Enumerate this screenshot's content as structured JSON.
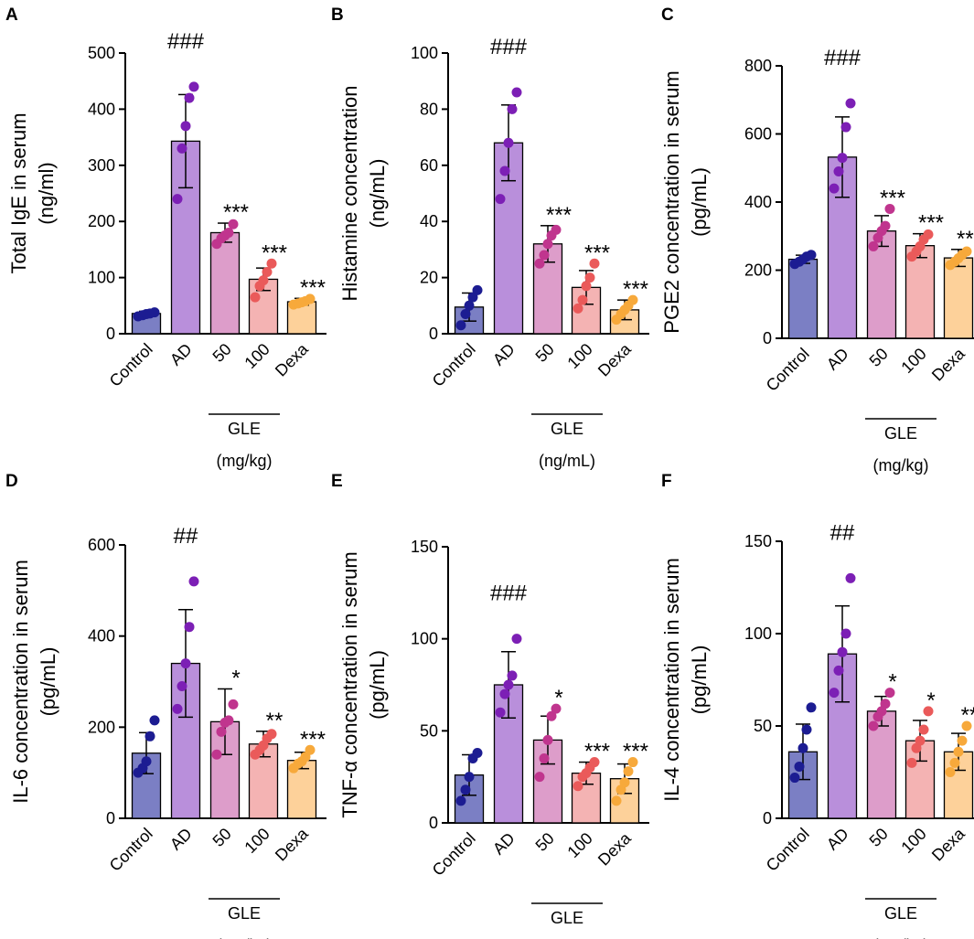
{
  "colors": {
    "bar_fill": [
      "#7b7fc4",
      "#b98fdb",
      "#dd9dca",
      "#f4b3b3",
      "#fdd19a"
    ],
    "dot_fill": [
      "#1c1c92",
      "#7c1fb5",
      "#c0358e",
      "#ea5a5a",
      "#f7a93b"
    ]
  },
  "chart_data": [
    {
      "type": "bar",
      "panel": "A",
      "ylabel_lines": [
        "Total IgE in serum",
        "(ng/ml)"
      ],
      "ylim": [
        0,
        500
      ],
      "yticks": [
        "0",
        "100",
        "200",
        "300",
        "400",
        "500"
      ],
      "categories": [
        "Control",
        "AD",
        "50",
        "100",
        "Dexa"
      ],
      "group_label": "GLE",
      "unit_label": "(mg/kg)",
      "means": [
        36,
        343,
        180,
        97,
        57
      ],
      "sd": [
        4,
        83,
        17,
        20,
        6
      ],
      "points": [
        [
          31,
          33,
          35,
          36,
          38
        ],
        [
          240,
          330,
          370,
          420,
          440
        ],
        [
          160,
          170,
          175,
          180,
          195
        ],
        [
          65,
          85,
          95,
          110,
          125
        ],
        [
          52,
          54,
          56,
          58,
          62
        ]
      ],
      "significance": [
        "",
        "###",
        "***",
        "***",
        "***"
      ]
    },
    {
      "type": "bar",
      "panel": "B",
      "ylabel_lines": [
        "Histamine concentration",
        "(ng/mL)"
      ],
      "ylim": [
        0,
        100
      ],
      "yticks": [
        "0",
        "20",
        "40",
        "60",
        "80",
        "100"
      ],
      "categories": [
        "Control",
        "AD",
        "50",
        "100",
        "Dexa"
      ],
      "group_label": "GLE",
      "unit_label": "(ng/mL)",
      "means": [
        9.5,
        68,
        32,
        16.5,
        8.5
      ],
      "sd": [
        5,
        13.5,
        6.5,
        6,
        3.5
      ],
      "points": [
        [
          3,
          7,
          10,
          13,
          15.5
        ],
        [
          48,
          58,
          68,
          80,
          86
        ],
        [
          25,
          28,
          32,
          35,
          37
        ],
        [
          9,
          12,
          17,
          20,
          25
        ],
        [
          5,
          7,
          8.5,
          10,
          12
        ]
      ],
      "significance": [
        "",
        "###",
        "***",
        "***",
        "***"
      ]
    },
    {
      "type": "bar",
      "panel": "C",
      "ylabel_lines": [
        "PGE2 concentration in serum",
        "(pg/mL)"
      ],
      "ylim": [
        0,
        800
      ],
      "yticks": [
        "0",
        "200",
        "400",
        "600",
        "800"
      ],
      "categories": [
        "Control",
        "AD",
        "50",
        "100",
        "Dexa"
      ],
      "group_label": "GLE",
      "unit_label": "(mg/kg)",
      "means": [
        232,
        532,
        315,
        272,
        236
      ],
      "sd": [
        12,
        118,
        45,
        35,
        25
      ],
      "points": [
        [
          218,
          225,
          232,
          240,
          245
        ],
        [
          440,
          490,
          530,
          620,
          690
        ],
        [
          270,
          295,
          315,
          330,
          380
        ],
        [
          240,
          255,
          270,
          290,
          305
        ],
        [
          215,
          225,
          235,
          245,
          255
        ]
      ],
      "significance": [
        "",
        "###",
        "***",
        "***",
        "***"
      ]
    },
    {
      "type": "bar",
      "panel": "D",
      "ylabel_lines": [
        "IL-6 concentration  in serum",
        "(pg/mL)"
      ],
      "ylim": [
        0,
        600
      ],
      "yticks": [
        "0",
        "200",
        "400",
        "600"
      ],
      "categories": [
        "Control",
        "AD",
        "50",
        "100",
        "Dexa"
      ],
      "group_label": "GLE",
      "unit_label": "(mg/kg)",
      "means": [
        143,
        340,
        212,
        163,
        127
      ],
      "sd": [
        45,
        118,
        72,
        28,
        18
      ],
      "points": [
        [
          100,
          110,
          125,
          180,
          215
        ],
        [
          240,
          290,
          340,
          420,
          520
        ],
        [
          140,
          190,
          210,
          215,
          250
        ],
        [
          140,
          150,
          160,
          175,
          185
        ],
        [
          110,
          120,
          125,
          135,
          150
        ]
      ],
      "significance": [
        "",
        "##",
        "*",
        "**",
        "***"
      ]
    },
    {
      "type": "bar",
      "panel": "E",
      "ylabel_lines": [
        "TNF-α concentration in serum",
        "(pg/mL)"
      ],
      "ylim": [
        0,
        150
      ],
      "yticks": [
        "0",
        "50",
        "100",
        "150"
      ],
      "categories": [
        "Control",
        "AD",
        "50",
        "100",
        "Dexa"
      ],
      "group_label": "GLE",
      "unit_label": "(mg/kg)",
      "means": [
        26,
        75,
        45,
        27,
        24
      ],
      "sd": [
        11,
        18,
        13,
        6,
        8
      ],
      "points": [
        [
          12,
          18,
          25,
          35,
          38
        ],
        [
          60,
          70,
          75,
          80,
          100
        ],
        [
          25,
          35,
          45,
          58,
          62
        ],
        [
          20,
          25,
          27,
          30,
          33
        ],
        [
          12,
          18,
          22,
          28,
          33
        ]
      ],
      "significance": [
        "",
        "###",
        "*",
        "***",
        "***"
      ]
    },
    {
      "type": "bar",
      "panel": "F",
      "ylabel_lines": [
        "IL-4 concentration  in serum",
        "(pg/mL)"
      ],
      "ylim": [
        0,
        150
      ],
      "yticks": [
        "0",
        "50",
        "100",
        "150"
      ],
      "categories": [
        "Control",
        "AD",
        "50",
        "100",
        "Dexa"
      ],
      "group_label": "GLE",
      "unit_label": "(mg/kg)",
      "means": [
        36,
        89,
        58,
        42,
        36
      ],
      "sd": [
        15,
        26,
        8,
        11,
        10
      ],
      "points": [
        [
          22,
          28,
          38,
          48,
          60
        ],
        [
          68,
          80,
          90,
          100,
          130
        ],
        [
          50,
          55,
          58,
          62,
          68
        ],
        [
          30,
          38,
          42,
          48,
          58
        ],
        [
          25,
          30,
          36,
          42,
          50
        ]
      ],
      "significance": [
        "",
        "##",
        "*",
        "*",
        "**"
      ]
    }
  ]
}
